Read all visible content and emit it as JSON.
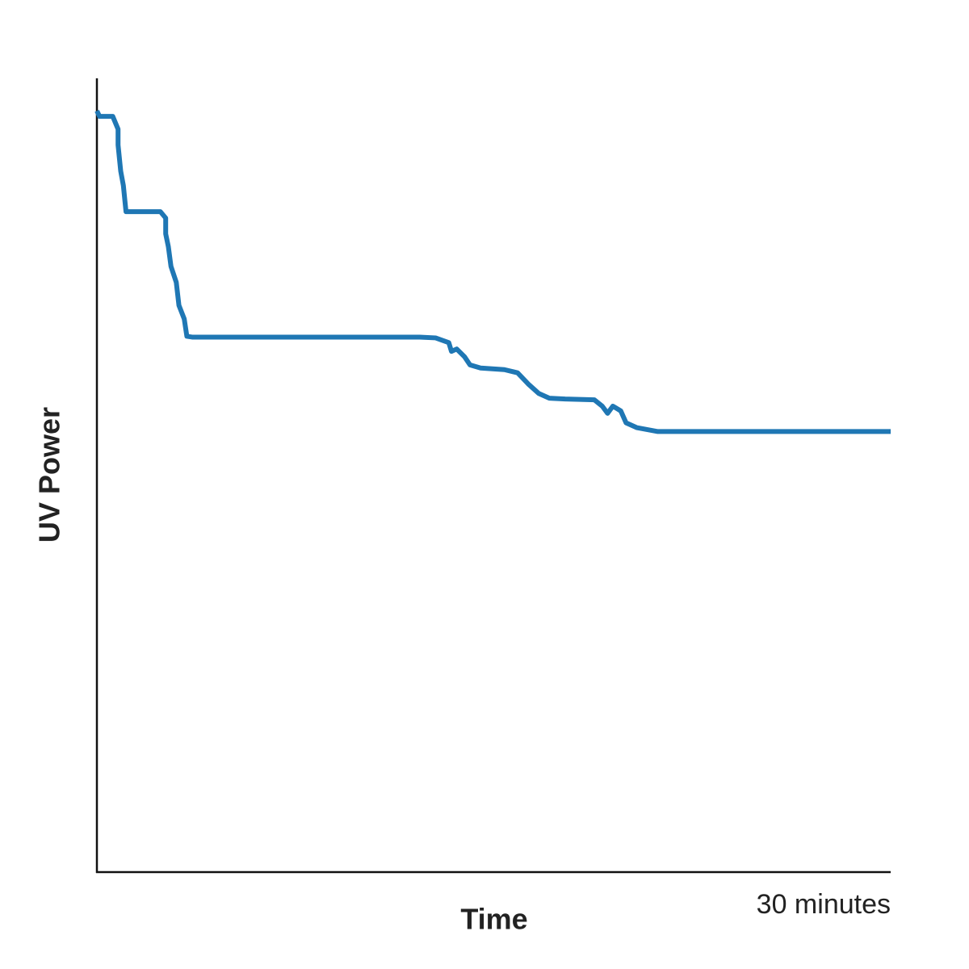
{
  "chart_data": {
    "type": "line",
    "x_label": "Time",
    "y_label": "UV Power",
    "xlim": [
      0,
      30
    ],
    "ylim": [
      0,
      100
    ],
    "xticks": [
      {
        "value": 30,
        "label": "30 minutes"
      }
    ],
    "x": [
      0,
      0.1,
      0.6,
      0.8,
      0.8,
      0.9,
      1.0,
      1.1,
      2.4,
      2.6,
      2.6,
      2.7,
      2.8,
      3.0,
      3.1,
      3.3,
      3.4,
      3.6,
      12.2,
      12.8,
      13.3,
      13.4,
      13.6,
      13.9,
      14.1,
      14.5,
      15.4,
      15.9,
      16.3,
      16.7,
      17.1,
      17.7,
      18.8,
      19.1,
      19.3,
      19.5,
      19.8,
      20.0,
      20.4,
      21.2,
      30
    ],
    "series": [
      {
        "name": "UV Power",
        "color": "#1f77b4",
        "values": [
          95.9,
          95.2,
          95.2,
          93.6,
          91.6,
          88.3,
          86.5,
          83.2,
          83.2,
          82.4,
          80.4,
          78.8,
          76.3,
          74.3,
          71.4,
          69.7,
          67.5,
          67.4,
          67.4,
          67.3,
          66.7,
          65.6,
          65.9,
          64.9,
          63.9,
          63.5,
          63.3,
          62.9,
          61.5,
          60.3,
          59.7,
          59.6,
          59.5,
          58.7,
          57.8,
          58.7,
          58.1,
          56.6,
          56.0,
          55.5,
          55.5
        ]
      }
    ]
  }
}
